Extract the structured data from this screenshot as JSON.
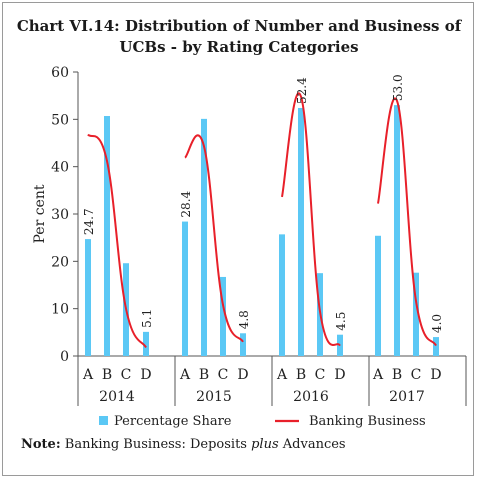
{
  "chart_data": {
    "type": "bar",
    "title_line1": "Chart VI.14: Distribution of Number and Business of",
    "title_line2": "UCBs - by Rating Categories",
    "ylabel": "Per cent",
    "xlabel": "",
    "ylim": [
      0,
      60
    ],
    "yticks": [
      "0",
      "10",
      "20",
      "30",
      "40",
      "50",
      "60"
    ],
    "years": [
      "2014",
      "2015",
      "2016",
      "2017"
    ],
    "categories": [
      "A",
      "B",
      "C",
      "D"
    ],
    "series": [
      {
        "name": "Percentage Share",
        "type": "bar",
        "color": "#5bc8f5",
        "values": [
          [
            24.7,
            50.7,
            19.6,
            5.1
          ],
          [
            28.4,
            50.1,
            16.7,
            4.8
          ],
          [
            25.7,
            52.4,
            17.5,
            4.5
          ],
          [
            25.4,
            53.0,
            17.6,
            4.0
          ]
        ],
        "labels": [
          [
            "24.7",
            "",
            "",
            "5.1"
          ],
          [
            "28.4",
            "",
            "",
            "4.8"
          ],
          [
            "",
            "52.4",
            "",
            "4.5"
          ],
          [
            "",
            "53.0",
            "",
            "4.0"
          ]
        ]
      },
      {
        "name": "Banking Business",
        "type": "line",
        "color": "#e8202a",
        "values": [
          [
            46.8,
            41.2,
            10.0,
            1.8
          ],
          [
            41.9,
            44.3,
            10.8,
            3.0
          ],
          [
            33.6,
            54.8,
            9.4,
            2.2
          ],
          [
            32.2,
            53.9,
            11.6,
            2.2
          ]
        ]
      }
    ],
    "grid": false,
    "legend": "bottom"
  },
  "note": {
    "label": "Note:",
    "text_before": " Banking Business: Deposits ",
    "text_italic": "plus",
    "text_after": " Advances"
  }
}
